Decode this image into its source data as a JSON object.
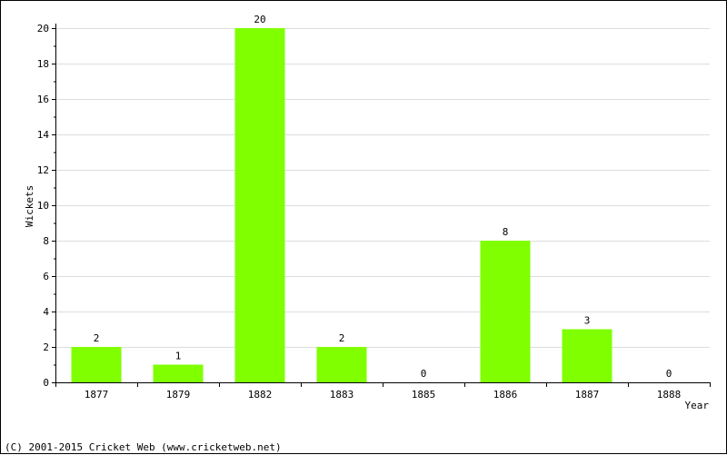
{
  "chart_data": {
    "type": "bar",
    "categories": [
      "1877",
      "1879",
      "1882",
      "1883",
      "1885",
      "1886",
      "1887",
      "1888"
    ],
    "values": [
      2,
      1,
      20,
      2,
      0,
      8,
      3,
      0
    ],
    "value_labels": [
      "2",
      "1",
      "20",
      "2",
      "0",
      "8",
      "3",
      "0"
    ],
    "xlabel": "Year",
    "ylabel": "Wickets",
    "ylim": [
      0,
      20
    ],
    "y_ticks": [
      0,
      2,
      4,
      6,
      8,
      10,
      12,
      14,
      16,
      18,
      20
    ],
    "y_tick_labels": [
      "0",
      "2",
      "4",
      "6",
      "8",
      "10",
      "12",
      "14",
      "16",
      "18",
      "20"
    ],
    "grid": true,
    "bar_color": "#7fff00",
    "grid_color": "#dddddd"
  },
  "footer": {
    "copyright": "(C) 2001-2015 Cricket Web (www.cricketweb.net)"
  }
}
